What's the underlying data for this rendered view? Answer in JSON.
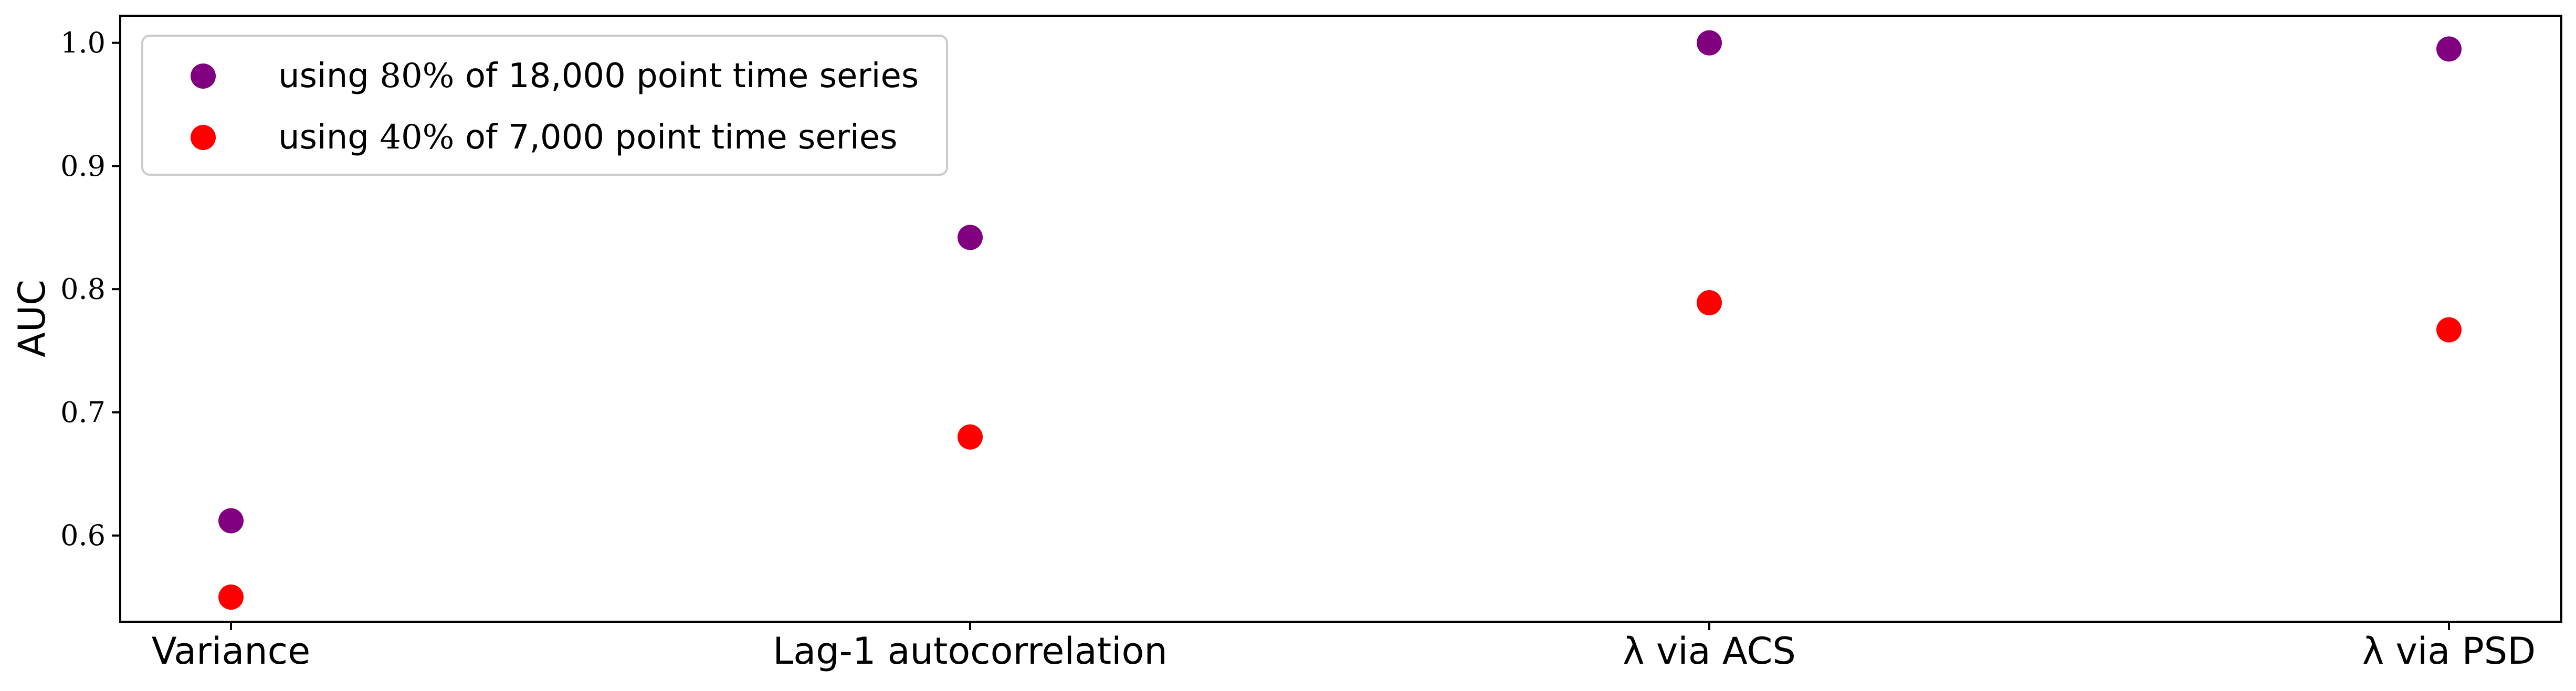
{
  "chart_data": {
    "type": "scatter",
    "title": "",
    "xlabel": "",
    "ylabel": "AUC",
    "categories": [
      "Variance",
      "Lag-1 autocorrelation",
      "λ via ACS",
      "λ via PSD"
    ],
    "ylim": [
      0.53,
      1.022
    ],
    "yticks": [
      0.6,
      0.7,
      0.8,
      0.9,
      1.0
    ],
    "ytick_labels": [
      "0.6",
      "0.7",
      "0.8",
      "0.9",
      "1.0"
    ],
    "grid": false,
    "legend_position": "top-left",
    "series": [
      {
        "name": "using 80% of 18,000 point time series",
        "legend_prefix": "using ",
        "legend_math": "80%",
        "legend_suffix": " of 18,000 point time series",
        "color": "#800080",
        "values": [
          0.612,
          0.842,
          1.0,
          0.995
        ]
      },
      {
        "name": "using 40% of 7,000 point time series",
        "legend_prefix": "using ",
        "legend_math": "40%",
        "legend_suffix": " of 7,000 point time series",
        "color": "#ff0000",
        "values": [
          0.55,
          0.68,
          0.789,
          0.767
        ]
      }
    ]
  }
}
